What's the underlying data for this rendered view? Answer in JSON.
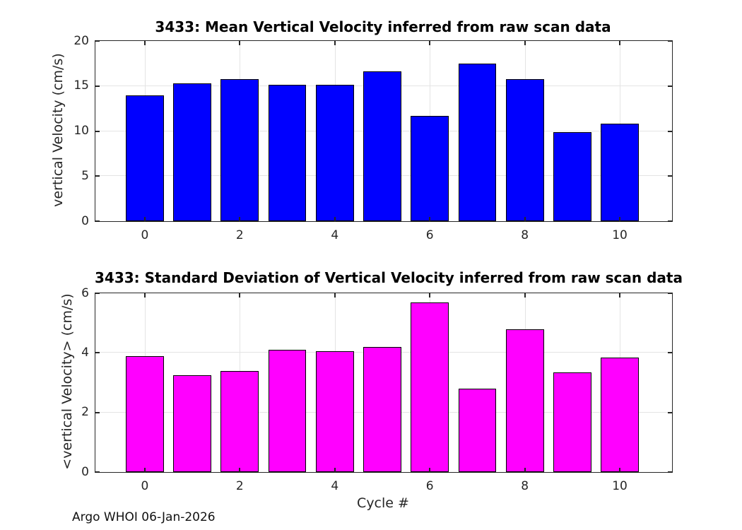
{
  "figure": {
    "footer_text": "Argo WHOI 06-Jan-2026",
    "background_color": "#ffffff",
    "axis_color": "#262626",
    "grid_color": "#e4e4e4"
  },
  "chart_data": [
    {
      "type": "bar",
      "title": "3433: Mean Vertical Velocity inferred from raw scan data",
      "xlabel": "",
      "ylabel": "vertical Velocity (cm/s)",
      "categories": [
        0,
        1,
        2,
        3,
        4,
        5,
        6,
        7,
        8,
        9,
        10
      ],
      "values": [
        14.0,
        15.3,
        15.8,
        15.15,
        15.15,
        16.6,
        11.65,
        17.5,
        15.8,
        9.85,
        10.85
      ],
      "bar_color": "#0000ff",
      "edge_color": "#000000",
      "bar_width": 0.8,
      "xlim": [
        -1.04,
        11.1
      ],
      "ylim": [
        0,
        20
      ],
      "xticks": [
        0,
        2,
        4,
        6,
        8,
        10
      ],
      "yticks": [
        0,
        5,
        10,
        15,
        20
      ],
      "grid": true,
      "legend_position": "none"
    },
    {
      "type": "bar",
      "title": "3433: Standard Deviation of Vertical Velocity inferred from raw scan data",
      "xlabel": "Cycle #",
      "ylabel": "<vertical Velocity> (cm/s)",
      "categories": [
        0,
        1,
        2,
        3,
        4,
        5,
        6,
        7,
        8,
        9,
        10
      ],
      "values": [
        3.9,
        3.25,
        3.4,
        4.1,
        4.05,
        4.2,
        5.7,
        2.8,
        4.8,
        3.35,
        3.85
      ],
      "bar_color": "#ff00ff",
      "edge_color": "#000000",
      "bar_width": 0.8,
      "xlim": [
        -1.04,
        11.1
      ],
      "ylim": [
        0,
        6
      ],
      "xticks": [
        0,
        2,
        4,
        6,
        8,
        10
      ],
      "yticks": [
        0,
        2,
        4,
        6
      ],
      "grid": true,
      "legend_position": "none"
    }
  ]
}
